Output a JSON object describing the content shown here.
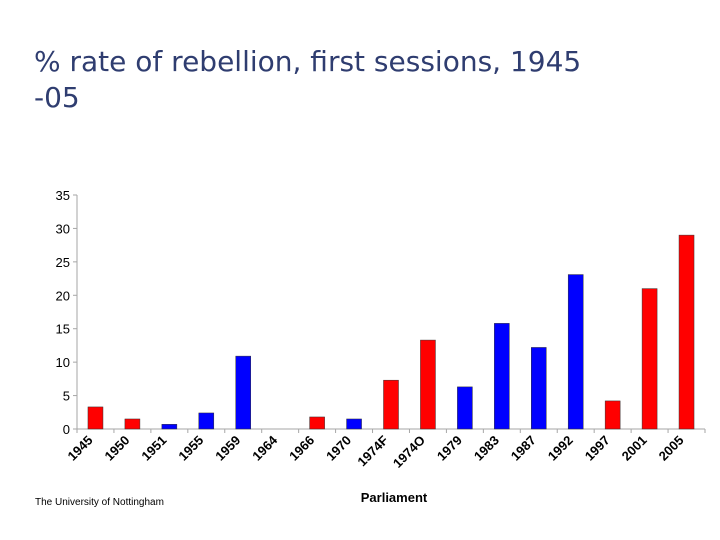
{
  "slide": {
    "title_line1": "% rate of rebellion, first sessions, 1945",
    "title_line2": "-05",
    "footer": "The University of Nottingham"
  },
  "colors": {
    "red": "#ff0000",
    "blue": "#0000ff",
    "axis": "#a6a6a6",
    "text": "#000000"
  },
  "chart_data": {
    "type": "bar",
    "title": "% rate of rebellion, first sessions, 1945 -05",
    "xlabel": "Parliament",
    "ylabel": "",
    "ylim": [
      0,
      35
    ],
    "yticks": [
      0,
      5,
      10,
      15,
      20,
      25,
      30,
      35
    ],
    "categories": [
      "1945",
      "1950",
      "1951",
      "1955",
      "1959",
      "1964",
      "1966",
      "1970",
      "1974F",
      "1974O",
      "1979",
      "1983",
      "1987",
      "1992",
      "1997",
      "2001",
      "2005"
    ],
    "values": [
      3.3,
      1.5,
      0.7,
      2.4,
      10.9,
      0,
      1.8,
      1.5,
      7.3,
      13.3,
      6.3,
      15.8,
      12.2,
      23.1,
      4.2,
      21.0,
      29.0
    ],
    "bar_colors": [
      "red",
      "red",
      "blue",
      "blue",
      "blue",
      "blue",
      "red",
      "blue",
      "red",
      "red",
      "blue",
      "blue",
      "blue",
      "blue",
      "red",
      "red",
      "red"
    ],
    "grid": false
  }
}
